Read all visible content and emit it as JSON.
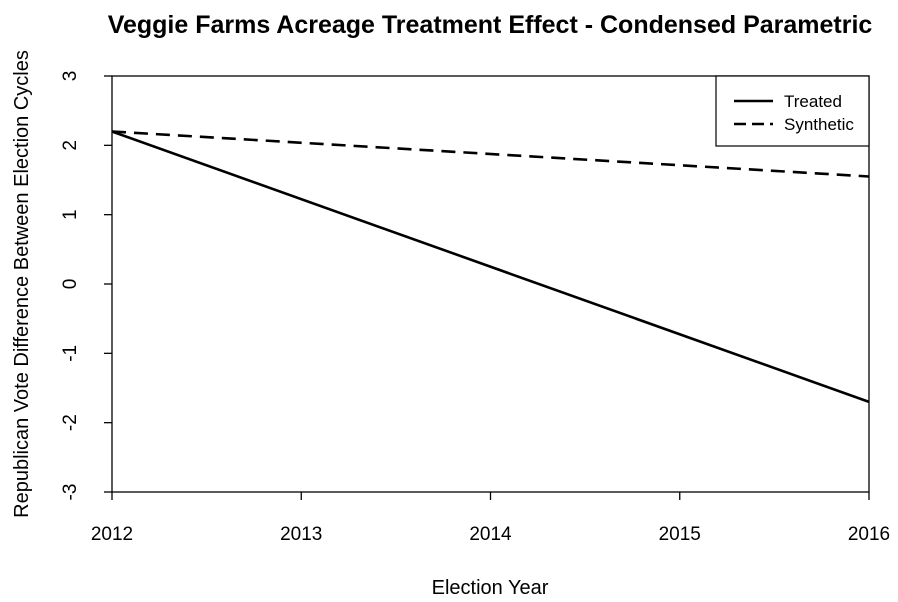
{
  "chart_data": {
    "type": "line",
    "title": "Veggie Farms Acreage Treatment Effect - Condensed Parametric",
    "xlabel": "Election Year",
    "ylabel": "Republican Vote Difference Between Election Cycles",
    "xlim": [
      2012,
      2016
    ],
    "ylim": [
      -3,
      3
    ],
    "x_ticks": [
      "2012",
      "2013",
      "2014",
      "2015",
      "2016"
    ],
    "y_ticks": [
      "-3",
      "-2",
      "-1",
      "0",
      "1",
      "2",
      "3"
    ],
    "x": [
      2012,
      2016
    ],
    "series": [
      {
        "name": "Treated",
        "line_style": "solid",
        "color": "#000000",
        "values": [
          2.2,
          -1.7
        ]
      },
      {
        "name": "Synthetic",
        "line_style": "dashed",
        "color": "#000000",
        "values": [
          2.2,
          1.55
        ]
      }
    ],
    "legend": {
      "position": "top-right",
      "entries": [
        "Treated",
        "Synthetic"
      ]
    },
    "grid": false
  }
}
